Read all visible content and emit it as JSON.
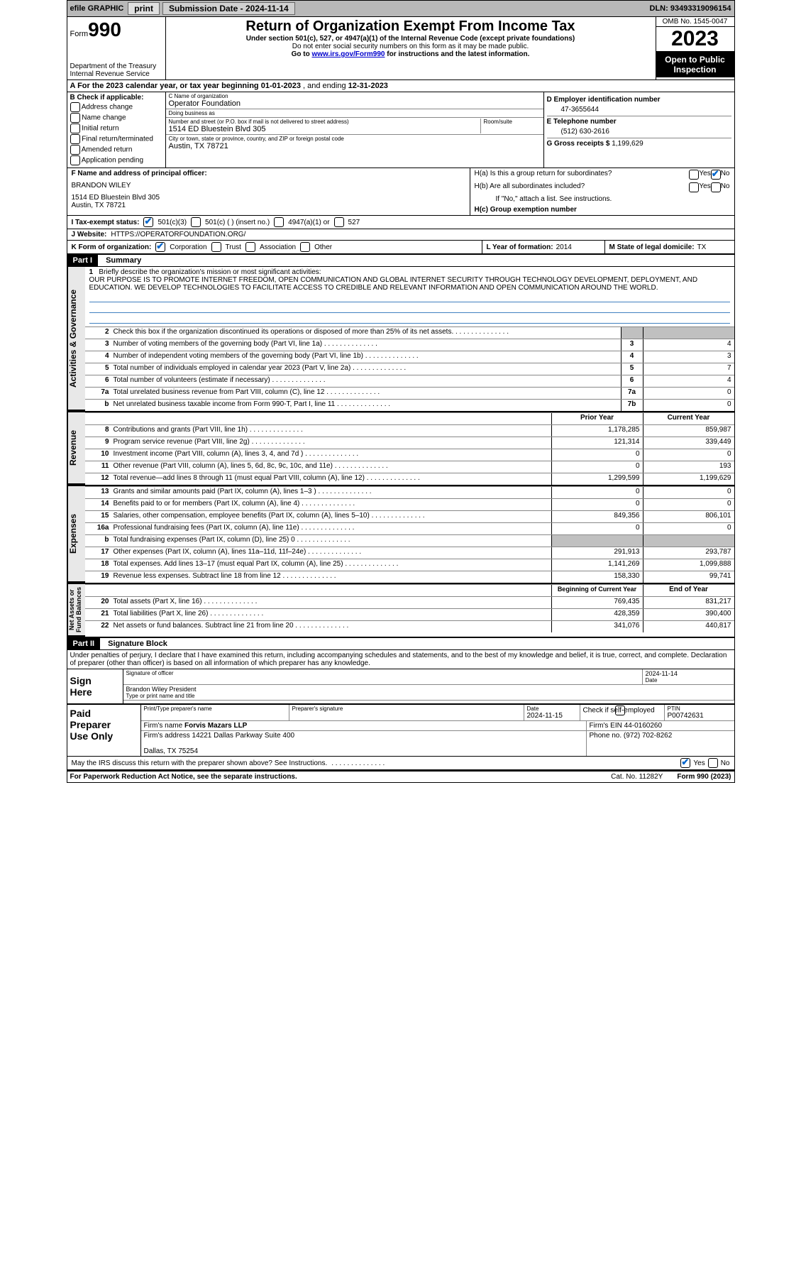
{
  "topbar": {
    "efile": "efile GRAPHIC",
    "print": "print",
    "sub_lbl": "Submission Date - ",
    "sub_date": "2024-11-14",
    "dln_lbl": "DLN: ",
    "dln": "93493319096154"
  },
  "header": {
    "form_word": "Form",
    "form_no": "990",
    "dept": "Department of the Treasury\nInternal Revenue Service",
    "title": "Return of Organization Exempt From Income Tax",
    "sub1": "Under section 501(c), 527, or 4947(a)(1) of the Internal Revenue Code (except private foundations)",
    "sub2": "Do not enter social security numbers on this form as it may be made public.",
    "sub3_pre": "Go to ",
    "sub3_link": "www.irs.gov/Form990",
    "sub3_post": " for instructions and the latest information.",
    "omb": "OMB No. 1545-0047",
    "year": "2023",
    "open": "Open to Public\nInspection"
  },
  "row_a": {
    "text_pre": "A For the 2023 calendar year, or tax year beginning ",
    "begin": "01-01-2023",
    "mid": "   , and ending ",
    "end": "12-31-2023"
  },
  "col_b": {
    "hdr": "B Check if applicable:",
    "items": [
      "Address change",
      "Name change",
      "Initial return",
      "Final return/terminated",
      "Amended return",
      "Application pending"
    ]
  },
  "col_c": {
    "name_lbl": "C Name of organization",
    "name": "Operator Foundation",
    "dba_lbl": "Doing business as",
    "dba": "",
    "addr_lbl": "Number and street (or P.O. box if mail is not delivered to street address)",
    "room_lbl": "Room/suite",
    "addr": "1514 ED Bluestein Blvd 305",
    "city_lbl": "City or town, state or province, country, and ZIP or foreign postal code",
    "city": "Austin, TX  78721"
  },
  "col_d": {
    "ein_lbl": "D Employer identification number",
    "ein": "47-3655644",
    "phone_lbl": "E Telephone number",
    "phone": "(512) 630-2616",
    "gross_lbl": "G Gross receipts $ ",
    "gross": "1,199,629"
  },
  "row_f": {
    "lbl": "F Name and address of principal officer:",
    "name": "BRANDON WILEY",
    "addr": "1514 ED Bluestein Blvd 305\nAustin, TX  78721"
  },
  "row_h": {
    "ha_lbl": "H(a)  Is this a group return for subordinates?",
    "ha_yes": "Yes",
    "ha_no": "No",
    "hb_lbl": "H(b)  Are all subordinates included?",
    "hb_yes": "Yes",
    "hb_no": "No",
    "hb_note": "If \"No,\" attach a list. See instructions.",
    "hc_lbl": "H(c)  Group exemption number "
  },
  "row_i": {
    "lbl": "I     Tax-exempt status:",
    "opt1": "501(c)(3)",
    "opt2": "501(c) (   ) (insert no.)",
    "opt3": "4947(a)(1) or",
    "opt4": "527"
  },
  "row_j": {
    "lbl": "J     Website: ",
    "val": "HTTPS://OPERATORFOUNDATION.ORG/"
  },
  "row_k": {
    "lbl": "K Form of organization:",
    "opts": [
      "Corporation",
      "Trust",
      "Association",
      "Other"
    ],
    "l_lbl": "L Year of formation: ",
    "l_val": "2014",
    "m_lbl": "M State of legal domicile: ",
    "m_val": "TX"
  },
  "part1": {
    "hdr": "Part I",
    "title": "Summary"
  },
  "vtabs": {
    "gov": "Activities & Governance",
    "rev": "Revenue",
    "exp": "Expenses",
    "net": "Net Assets or\nFund Balances"
  },
  "mission": {
    "num": "1",
    "lbl": "Briefly describe the organization's mission or most significant activities:",
    "text": "OUR PURPOSE IS TO PROMOTE INTERNET FREEDOM, OPEN COMMUNICATION AND GLOBAL INTERNET SECURITY THROUGH TECHNOLOGY DEVELOPMENT, DEPLOYMENT, AND EDUCATION. WE DEVELOP TECHNOLOGIES TO FACILITATE ACCESS TO CREDIBLE AND RELEVANT INFORMATION AND OPEN COMMUNICATION AROUND THE WORLD."
  },
  "gov_rows": [
    {
      "n": "2",
      "lbl": "Check this box      if the organization discontinued its operations or disposed of more than 25% of its net assets.",
      "box": "",
      "v": ""
    },
    {
      "n": "3",
      "lbl": "Number of voting members of the governing body (Part VI, line 1a)",
      "box": "3",
      "v": "4"
    },
    {
      "n": "4",
      "lbl": "Number of independent voting members of the governing body (Part VI, line 1b)",
      "box": "4",
      "v": "3"
    },
    {
      "n": "5",
      "lbl": "Total number of individuals employed in calendar year 2023 (Part V, line 2a)",
      "box": "5",
      "v": "7"
    },
    {
      "n": "6",
      "lbl": "Total number of volunteers (estimate if necessary)",
      "box": "6",
      "v": "4"
    },
    {
      "n": "7a",
      "lbl": "Total unrelated business revenue from Part VIII, column (C), line 12",
      "box": "7a",
      "v": "0"
    },
    {
      "n": "b",
      "lbl": "Net unrelated business taxable income from Form 990-T, Part I, line 11",
      "box": "7b",
      "v": "0"
    }
  ],
  "col_hdrs": {
    "prior": "Prior Year",
    "current": "Current Year",
    "boc": "Beginning of Current Year",
    "eoy": "End of Year"
  },
  "rev_rows": [
    {
      "n": "8",
      "lbl": "Contributions and grants (Part VIII, line 1h)",
      "p": "1,178,285",
      "c": "859,987"
    },
    {
      "n": "9",
      "lbl": "Program service revenue (Part VIII, line 2g)",
      "p": "121,314",
      "c": "339,449"
    },
    {
      "n": "10",
      "lbl": "Investment income (Part VIII, column (A), lines 3, 4, and 7d )",
      "p": "0",
      "c": "0"
    },
    {
      "n": "11",
      "lbl": "Other revenue (Part VIII, column (A), lines 5, 6d, 8c, 9c, 10c, and 11e)",
      "p": "0",
      "c": "193"
    },
    {
      "n": "12",
      "lbl": "Total revenue—add lines 8 through 11 (must equal Part VIII, column (A), line 12)",
      "p": "1,299,599",
      "c": "1,199,629"
    }
  ],
  "exp_rows": [
    {
      "n": "13",
      "lbl": "Grants and similar amounts paid (Part IX, column (A), lines 1–3 )",
      "p": "0",
      "c": "0"
    },
    {
      "n": "14",
      "lbl": "Benefits paid to or for members (Part IX, column (A), line 4)",
      "p": "0",
      "c": "0"
    },
    {
      "n": "15",
      "lbl": "Salaries, other compensation, employee benefits (Part IX, column (A), lines 5–10)",
      "p": "849,356",
      "c": "806,101"
    },
    {
      "n": "16a",
      "lbl": "Professional fundraising fees (Part IX, column (A), line 11e)",
      "p": "0",
      "c": "0"
    },
    {
      "n": "b",
      "lbl": "Total fundraising expenses (Part IX, column (D), line 25) 0",
      "p": "",
      "c": "",
      "grey": true
    },
    {
      "n": "17",
      "lbl": "Other expenses (Part IX, column (A), lines 11a–11d, 11f–24e)",
      "p": "291,913",
      "c": "293,787"
    },
    {
      "n": "18",
      "lbl": "Total expenses. Add lines 13–17 (must equal Part IX, column (A), line 25)",
      "p": "1,141,269",
      "c": "1,099,888"
    },
    {
      "n": "19",
      "lbl": "Revenue less expenses. Subtract line 18 from line 12",
      "p": "158,330",
      "c": "99,741"
    }
  ],
  "net_rows": [
    {
      "n": "20",
      "lbl": "Total assets (Part X, line 16)",
      "p": "769,435",
      "c": "831,217"
    },
    {
      "n": "21",
      "lbl": "Total liabilities (Part X, line 26)",
      "p": "428,359",
      "c": "390,400"
    },
    {
      "n": "22",
      "lbl": "Net assets or fund balances. Subtract line 21 from line 20",
      "p": "341,076",
      "c": "440,817"
    }
  ],
  "part2": {
    "hdr": "Part II",
    "title": "Signature Block",
    "decl": "Under penalties of perjury, I declare that I have examined this return, including accompanying schedules and statements, and to the best of my knowledge and belief, it is true, correct, and complete. Declaration of preparer (other than officer) is based on all information of which preparer has any knowledge."
  },
  "sign": {
    "hdr": "Sign\nHere",
    "sig_lbl": "Signature of officer",
    "name": "Brandon Wiley President",
    "name_lbl": "Type or print name and title",
    "date_lbl": "Date",
    "date": "2024-11-14"
  },
  "paid": {
    "hdr": "Paid\nPreparer\nUse Only",
    "prep_name_lbl": "Print/Type preparer's name",
    "prep_name": "",
    "prep_sig_lbl": "Preparer's signature",
    "date_lbl": "Date",
    "date": "2024-11-15",
    "chk_lbl": "Check       if self-employed",
    "ptin_lbl": "PTIN",
    "ptin": "P00742631",
    "firm_name_lbl": "Firm's name   ",
    "firm_name": "Forvis Mazars LLP",
    "firm_ein_lbl": "Firm's EIN  ",
    "firm_ein": "44-0160260",
    "firm_addr_lbl": "Firm's address ",
    "firm_addr": "14221 Dallas Parkway Suite 400\n\nDallas, TX  75254",
    "phone_lbl": "Phone no. ",
    "phone": "(972) 702-8262",
    "discuss": "May the IRS discuss this return with the preparer shown above? See Instructions.",
    "yes": "Yes",
    "no": "No"
  },
  "footer": {
    "left": "For Paperwork Reduction Act Notice, see the separate instructions.",
    "mid": "Cat. No. 11282Y",
    "right": "Form 990 (2023)"
  }
}
